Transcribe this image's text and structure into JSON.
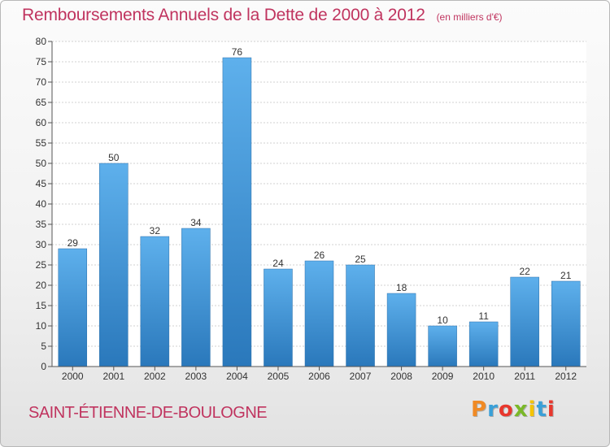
{
  "chart_data": {
    "type": "bar",
    "title": "Remboursements Annuels de la Dette de 2000 à 2012",
    "subtitle": "(en milliers d'€)",
    "categories": [
      "2000",
      "2001",
      "2002",
      "2003",
      "2004",
      "2005",
      "2006",
      "2007",
      "2008",
      "2009",
      "2010",
      "2011",
      "2012"
    ],
    "values": [
      29,
      50,
      32,
      34,
      76,
      24,
      26,
      25,
      18,
      10,
      11,
      22,
      21
    ],
    "xlabel": "",
    "ylabel": "",
    "ylim": [
      0,
      80
    ],
    "yticks": [
      0,
      5,
      10,
      15,
      20,
      25,
      30,
      35,
      40,
      45,
      50,
      55,
      60,
      65,
      70,
      75,
      80
    ],
    "grid": true,
    "bar_color": "#3a8fd6",
    "data_labels": true
  },
  "footer": {
    "commune": "SAINT-ÉTIENNE-DE-BOULOGNE",
    "logo": "Proxiti"
  },
  "colors": {
    "title": "#c0345f",
    "bar_top": "#5eb0ec",
    "bar_bottom": "#2a78bb"
  }
}
